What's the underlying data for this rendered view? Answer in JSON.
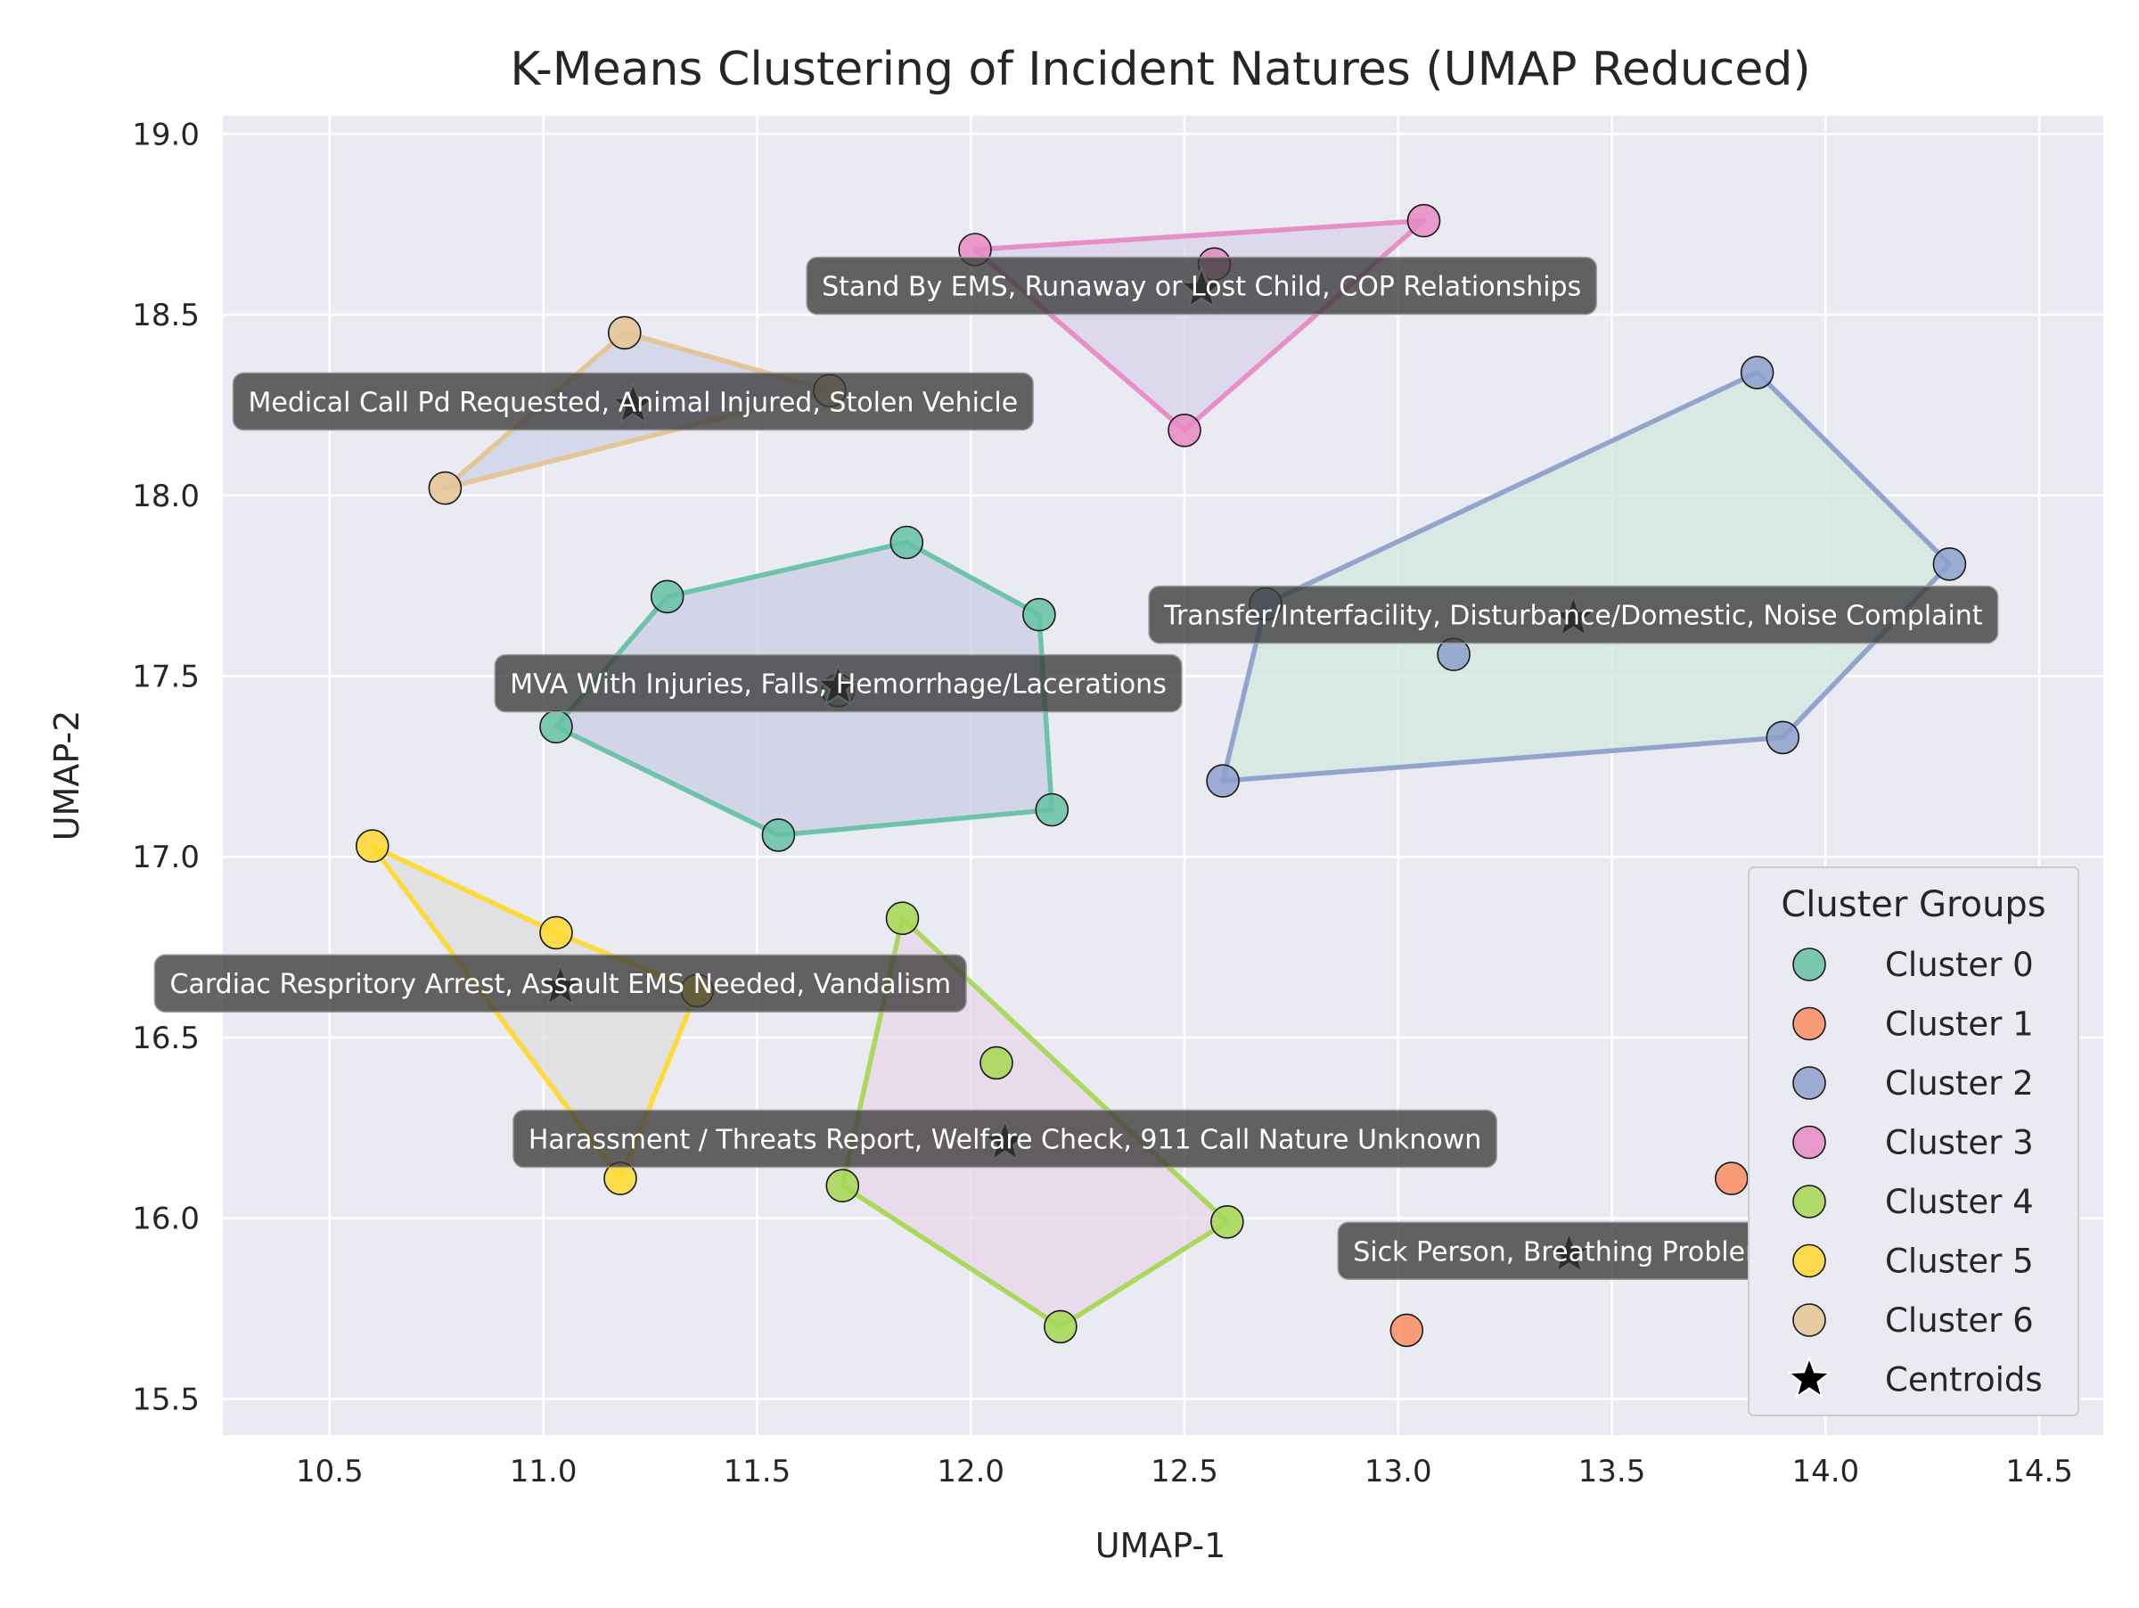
{
  "chart_data": {
    "type": "scatter",
    "title": "K-Means Clustering of Incident Natures (UMAP Reduced)",
    "xlabel": "UMAP-1",
    "ylabel": "UMAP-2",
    "xlim": [
      10.25,
      14.65
    ],
    "ylim": [
      15.4,
      19.05
    ],
    "xticks": [
      "10.5",
      "11.0",
      "11.5",
      "12.0",
      "12.5",
      "13.0",
      "13.5",
      "14.0",
      "14.5"
    ],
    "yticks": [
      "15.5",
      "16.0",
      "16.5",
      "17.0",
      "17.5",
      "18.0",
      "18.5",
      "19.0"
    ],
    "grid": true,
    "legend": {
      "title": "Cluster Groups",
      "position": "lower-right",
      "centroid_label": "Centroids"
    },
    "series": [
      {
        "name": "Cluster 0",
        "color": "#66c2a5",
        "points": [
          [
            11.03,
            17.36
          ],
          [
            11.29,
            17.72
          ],
          [
            11.85,
            17.87
          ],
          [
            12.16,
            17.67
          ],
          [
            12.19,
            17.13
          ],
          [
            11.55,
            17.06
          ],
          [
            11.69,
            17.46
          ]
        ],
        "hull": [
          [
            11.03,
            17.36
          ],
          [
            11.29,
            17.72
          ],
          [
            11.85,
            17.87
          ],
          [
            12.16,
            17.67
          ],
          [
            12.19,
            17.13
          ],
          [
            11.55,
            17.06
          ]
        ],
        "hull_fill": "#c9cde3",
        "hull_line": true
      },
      {
        "name": "Cluster 1",
        "color": "#fc8d62",
        "points": [
          [
            13.02,
            15.69
          ],
          [
            13.78,
            16.11
          ],
          [
            13.9,
            16.1
          ]
        ],
        "hull": [],
        "hull_fill": "#fc8d62",
        "hull_line": false
      },
      {
        "name": "Cluster 2",
        "color": "#8da0cb",
        "points": [
          [
            12.59,
            17.21
          ],
          [
            12.69,
            17.7
          ],
          [
            13.13,
            17.56
          ],
          [
            13.84,
            18.34
          ],
          [
            14.29,
            17.81
          ],
          [
            13.9,
            17.33
          ]
        ],
        "hull": [
          [
            12.59,
            17.21
          ],
          [
            12.69,
            17.7
          ],
          [
            13.84,
            18.34
          ],
          [
            14.29,
            17.81
          ],
          [
            13.9,
            17.33
          ]
        ],
        "hull_fill": "#d1e7dd",
        "hull_line": true
      },
      {
        "name": "Cluster 3",
        "color": "#e78ac3",
        "points": [
          [
            12.01,
            18.68
          ],
          [
            12.57,
            18.64
          ],
          [
            13.06,
            18.76
          ],
          [
            12.5,
            18.18
          ]
        ],
        "hull": [
          [
            12.01,
            18.68
          ],
          [
            13.06,
            18.76
          ],
          [
            12.5,
            18.18
          ]
        ],
        "hull_fill": "#d8d1ea",
        "hull_line": true
      },
      {
        "name": "Cluster 4",
        "color": "#a6d854",
        "points": [
          [
            11.84,
            16.83
          ],
          [
            12.06,
            16.43
          ],
          [
            11.7,
            16.09
          ],
          [
            12.21,
            15.7
          ],
          [
            12.6,
            15.99
          ]
        ],
        "hull": [
          [
            11.84,
            16.83
          ],
          [
            11.7,
            16.09
          ],
          [
            12.21,
            15.7
          ],
          [
            12.6,
            15.99
          ]
        ],
        "hull_fill": "#ead6ea",
        "hull_line": true
      },
      {
        "name": "Cluster 5",
        "color": "#ffd92f",
        "points": [
          [
            10.6,
            17.03
          ],
          [
            11.03,
            16.79
          ],
          [
            11.36,
            16.63
          ],
          [
            11.18,
            16.11
          ]
        ],
        "hull": [
          [
            10.6,
            17.03
          ],
          [
            11.03,
            16.79
          ],
          [
            11.36,
            16.63
          ],
          [
            11.18,
            16.11
          ]
        ],
        "hull_fill": "#dedddd",
        "hull_line": true
      },
      {
        "name": "Cluster 6",
        "color": "#e5c494",
        "points": [
          [
            11.19,
            18.45
          ],
          [
            11.67,
            18.29
          ],
          [
            10.77,
            18.02
          ]
        ],
        "hull": [
          [
            11.19,
            18.45
          ],
          [
            11.67,
            18.29
          ],
          [
            10.77,
            18.02
          ]
        ],
        "hull_fill": "#cdd0e8",
        "hull_line": true
      }
    ],
    "centroids": [
      {
        "cluster": "Cluster 0",
        "x": 11.69,
        "y": 17.47,
        "label": "MVA With Injuries, Falls, Hemorrhage/Lacerations"
      },
      {
        "cluster": "Cluster 1",
        "x": 13.4,
        "y": 15.9,
        "label": "Sick Person, Breathing Problems"
      },
      {
        "cluster": "Cluster 2",
        "x": 13.41,
        "y": 17.66,
        "label": "Transfer/Interfacility, Disturbance/Domestic, Noise Complaint"
      },
      {
        "cluster": "Cluster 3",
        "x": 12.54,
        "y": 18.57,
        "label": "Stand By EMS, Runaway or Lost Child, COP Relationships"
      },
      {
        "cluster": "Cluster 4",
        "x": 12.08,
        "y": 16.21,
        "label": "Harassment / Threats Report, Welfare Check, 911 Call Nature Unknown"
      },
      {
        "cluster": "Cluster 5",
        "x": 11.04,
        "y": 16.64,
        "label": "Cardiac Respritory Arrest, Assault EMS Needed, Vandalism"
      },
      {
        "cluster": "Cluster 6",
        "x": 11.21,
        "y": 18.25,
        "label": "Medical Call Pd Requested, Animal Injured, Stolen Vehicle"
      }
    ]
  }
}
